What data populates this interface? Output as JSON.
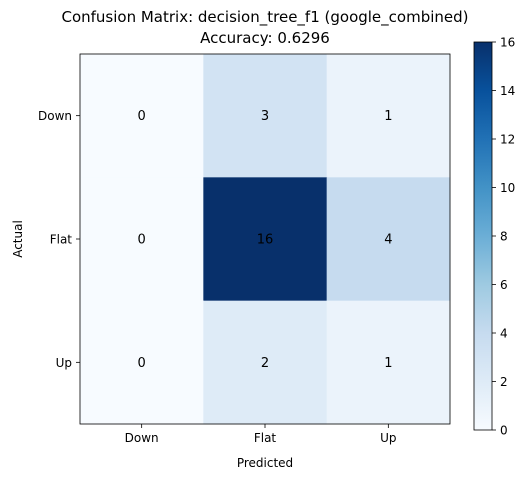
{
  "chart_data": {
    "type": "heatmap",
    "title": "Confusion Matrix: decision_tree_f1 (google_combined)",
    "subtitle": "Accuracy: 0.6296",
    "xlabel": "Predicted",
    "ylabel": "Actual",
    "x_categories": [
      "Down",
      "Flat",
      "Up"
    ],
    "y_categories": [
      "Down",
      "Flat",
      "Up"
    ],
    "values": [
      [
        0,
        3,
        1
      ],
      [
        0,
        16,
        4
      ],
      [
        0,
        2,
        1
      ]
    ],
    "colormap": "Blues",
    "color_range": [
      0,
      16
    ],
    "colorbar_ticks": [
      0,
      2,
      4,
      6,
      8,
      10,
      12,
      14,
      16
    ],
    "cell_text_color": "#000000",
    "colormap_stops": [
      "#f7fbff",
      "#deebf7",
      "#c6dbef",
      "#9ecae1",
      "#6baed6",
      "#4292c6",
      "#2171b5",
      "#08519c",
      "#08306b"
    ]
  }
}
